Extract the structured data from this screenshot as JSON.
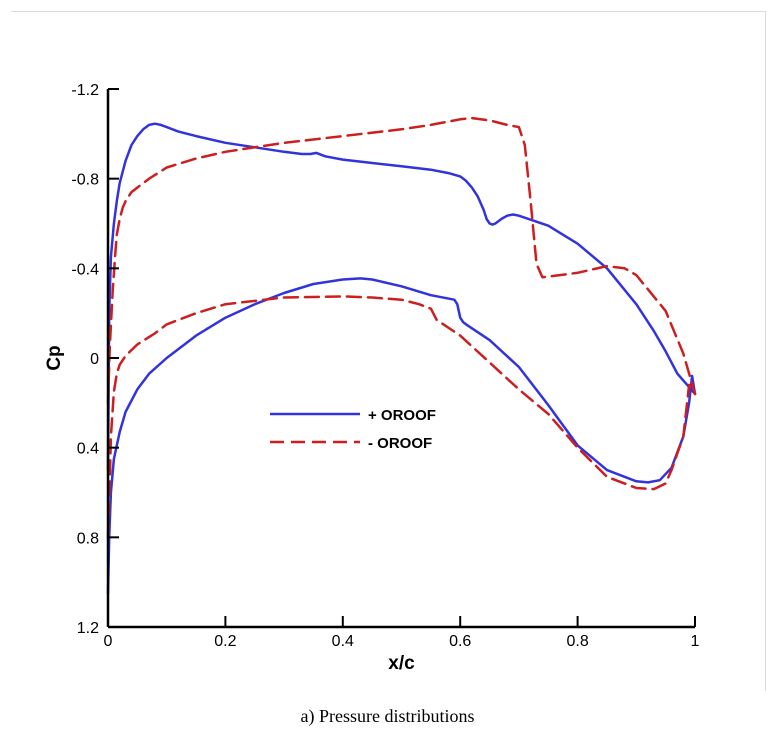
{
  "caption": "a) Pressure distributions",
  "colors": {
    "series_blue": "#3333dd",
    "series_red": "#cc1f1f",
    "axis": "#000000"
  },
  "chart_data": {
    "type": "line",
    "title": "",
    "xlabel": "x/c",
    "ylabel": "Cp",
    "xlim": [
      0,
      1
    ],
    "ylim": [
      1.2,
      -1.2
    ],
    "y_inverted": true,
    "x_ticks": [
      0,
      0.2,
      0.4,
      0.6,
      0.8,
      1
    ],
    "x_tick_labels": [
      "0",
      "0.2",
      "0.4",
      "0.6",
      "0.8",
      "1"
    ],
    "y_ticks": [
      -1.2,
      -0.8,
      -0.4,
      0,
      0.4,
      0.8,
      1.2
    ],
    "y_tick_labels": [
      "-1.2",
      "-0.8",
      "-0.4",
      "0",
      "0.4",
      "0.8",
      "1.2"
    ],
    "grid": false,
    "legend_position": "center",
    "series": [
      {
        "name": "+ OROOF",
        "style": "solid",
        "color": "#3333dd",
        "upper": {
          "x": [
            0,
            0.002,
            0.005,
            0.01,
            0.015,
            0.02,
            0.03,
            0.04,
            0.05,
            0.06,
            0.07,
            0.08,
            0.09,
            0.1,
            0.12,
            0.15,
            0.2,
            0.25,
            0.3,
            0.33,
            0.345,
            0.355,
            0.37,
            0.4,
            0.45,
            0.5,
            0.55,
            0.58,
            0.6,
            0.61,
            0.62,
            0.63,
            0.64,
            0.645,
            0.65,
            0.655,
            0.66,
            0.67,
            0.68,
            0.69,
            0.7,
            0.75,
            0.8,
            0.85,
            0.9,
            0.93,
            0.95,
            0.97,
            0.99,
            1.0
          ],
          "y": [
            0.5,
            -0.2,
            -0.45,
            -0.6,
            -0.7,
            -0.78,
            -0.88,
            -0.95,
            -0.99,
            -1.02,
            -1.04,
            -1.045,
            -1.04,
            -1.03,
            -1.01,
            -0.99,
            -0.96,
            -0.94,
            -0.92,
            -0.91,
            -0.91,
            -0.915,
            -0.9,
            -0.885,
            -0.87,
            -0.855,
            -0.84,
            -0.825,
            -0.81,
            -0.79,
            -0.76,
            -0.72,
            -0.66,
            -0.62,
            -0.6,
            -0.595,
            -0.6,
            -0.62,
            -0.635,
            -0.64,
            -0.635,
            -0.59,
            -0.51,
            -0.4,
            -0.24,
            -0.12,
            -0.03,
            0.07,
            0.13,
            0.16
          ]
        },
        "lower": {
          "x": [
            0,
            0.002,
            0.005,
            0.01,
            0.02,
            0.03,
            0.05,
            0.07,
            0.1,
            0.15,
            0.2,
            0.25,
            0.3,
            0.35,
            0.4,
            0.43,
            0.45,
            0.5,
            0.55,
            0.59,
            0.595,
            0.6,
            0.605,
            0.61,
            0.65,
            0.7,
            0.75,
            0.8,
            0.85,
            0.9,
            0.92,
            0.94,
            0.96,
            0.98,
            0.99,
            0.995,
            1.0
          ],
          "y": [
            1.05,
            0.8,
            0.6,
            0.45,
            0.33,
            0.24,
            0.14,
            0.07,
            0.0,
            -0.1,
            -0.18,
            -0.24,
            -0.29,
            -0.33,
            -0.35,
            -0.355,
            -0.35,
            -0.32,
            -0.28,
            -0.26,
            -0.24,
            -0.18,
            -0.16,
            -0.15,
            -0.08,
            0.04,
            0.21,
            0.39,
            0.5,
            0.55,
            0.555,
            0.545,
            0.49,
            0.35,
            0.2,
            0.08,
            0.16
          ]
        }
      },
      {
        "name": "- OROOF",
        "style": "dashed",
        "color": "#cc1f1f",
        "upper": {
          "x": [
            0,
            0.003,
            0.008,
            0.012,
            0.015,
            0.02,
            0.025,
            0.03,
            0.035,
            0.04,
            0.05,
            0.07,
            0.1,
            0.15,
            0.2,
            0.3,
            0.4,
            0.5,
            0.55,
            0.6,
            0.62,
            0.65,
            0.68,
            0.7,
            0.71,
            0.72,
            0.73,
            0.74,
            0.8,
            0.85,
            0.88,
            0.9,
            0.95,
            0.98,
            1.0
          ],
          "y": [
            0.2,
            -0.05,
            -0.3,
            -0.45,
            -0.55,
            -0.62,
            -0.67,
            -0.7,
            -0.72,
            -0.74,
            -0.76,
            -0.8,
            -0.85,
            -0.89,
            -0.92,
            -0.96,
            -0.99,
            -1.02,
            -1.04,
            -1.065,
            -1.07,
            -1.06,
            -1.04,
            -1.03,
            -0.95,
            -0.7,
            -0.42,
            -0.36,
            -0.38,
            -0.41,
            -0.4,
            -0.37,
            -0.21,
            -0.02,
            0.16
          ]
        },
        "lower": {
          "x": [
            0,
            0.003,
            0.005,
            0.01,
            0.015,
            0.02,
            0.03,
            0.05,
            0.08,
            0.1,
            0.15,
            0.2,
            0.3,
            0.4,
            0.45,
            0.5,
            0.53,
            0.55,
            0.56,
            0.6,
            0.65,
            0.7,
            0.75,
            0.8,
            0.85,
            0.9,
            0.93,
            0.95,
            0.96,
            0.98,
            0.99,
            1.0
          ],
          "y": [
            0.8,
            0.55,
            0.35,
            0.15,
            0.07,
            0.03,
            -0.01,
            -0.06,
            -0.11,
            -0.15,
            -0.2,
            -0.24,
            -0.27,
            -0.275,
            -0.27,
            -0.26,
            -0.24,
            -0.22,
            -0.17,
            -0.1,
            0.02,
            0.14,
            0.25,
            0.4,
            0.53,
            0.58,
            0.585,
            0.56,
            0.5,
            0.35,
            0.12,
            0.16
          ]
        }
      }
    ]
  }
}
